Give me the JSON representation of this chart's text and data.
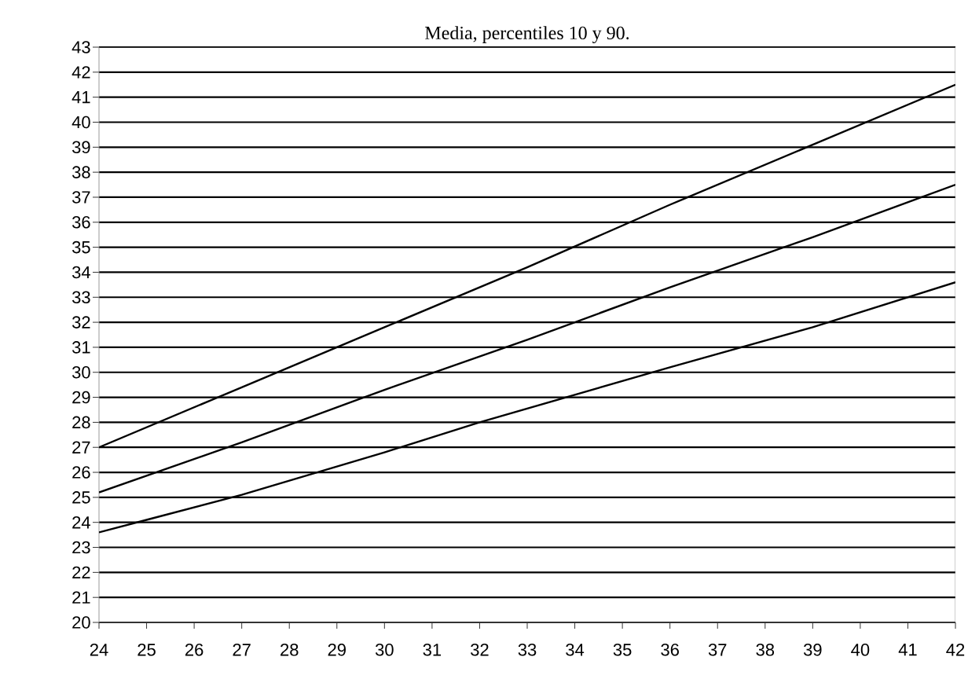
{
  "chart_data": {
    "type": "line",
    "title": "Media, percentiles 10 y 90.",
    "series": [
      {
        "color": "#000000",
        "x": [
          24,
          27,
          30,
          33,
          36,
          39,
          42
        ],
        "values": [
          27.0,
          29.4,
          31.8,
          34.2,
          36.7,
          39.1,
          41.5
        ]
      },
      {
        "color": "#000000",
        "x": [
          24,
          27,
          30,
          33,
          36,
          39,
          42
        ],
        "values": [
          25.2,
          27.2,
          29.3,
          31.3,
          33.4,
          35.4,
          37.5
        ]
      },
      {
        "color": "#000000",
        "x": [
          24,
          25,
          27,
          30,
          32,
          34,
          36,
          39,
          42
        ],
        "values": [
          23.6,
          24.1,
          25.1,
          26.8,
          28.0,
          29.1,
          30.2,
          31.8,
          33.6
        ]
      }
    ],
    "xlim": [
      24,
      42
    ],
    "ylim": [
      20,
      43
    ],
    "xticks": [
      24,
      25,
      26,
      27,
      28,
      29,
      30,
      31,
      32,
      33,
      34,
      35,
      36,
      37,
      38,
      39,
      40,
      41,
      42
    ],
    "yticks": [
      20,
      21,
      22,
      23,
      24,
      25,
      26,
      27,
      28,
      29,
      30,
      31,
      32,
      33,
      34,
      35,
      36,
      37,
      38,
      39,
      40,
      41,
      42,
      43
    ],
    "grid": "y",
    "marker": "none",
    "line_style": "solid"
  }
}
